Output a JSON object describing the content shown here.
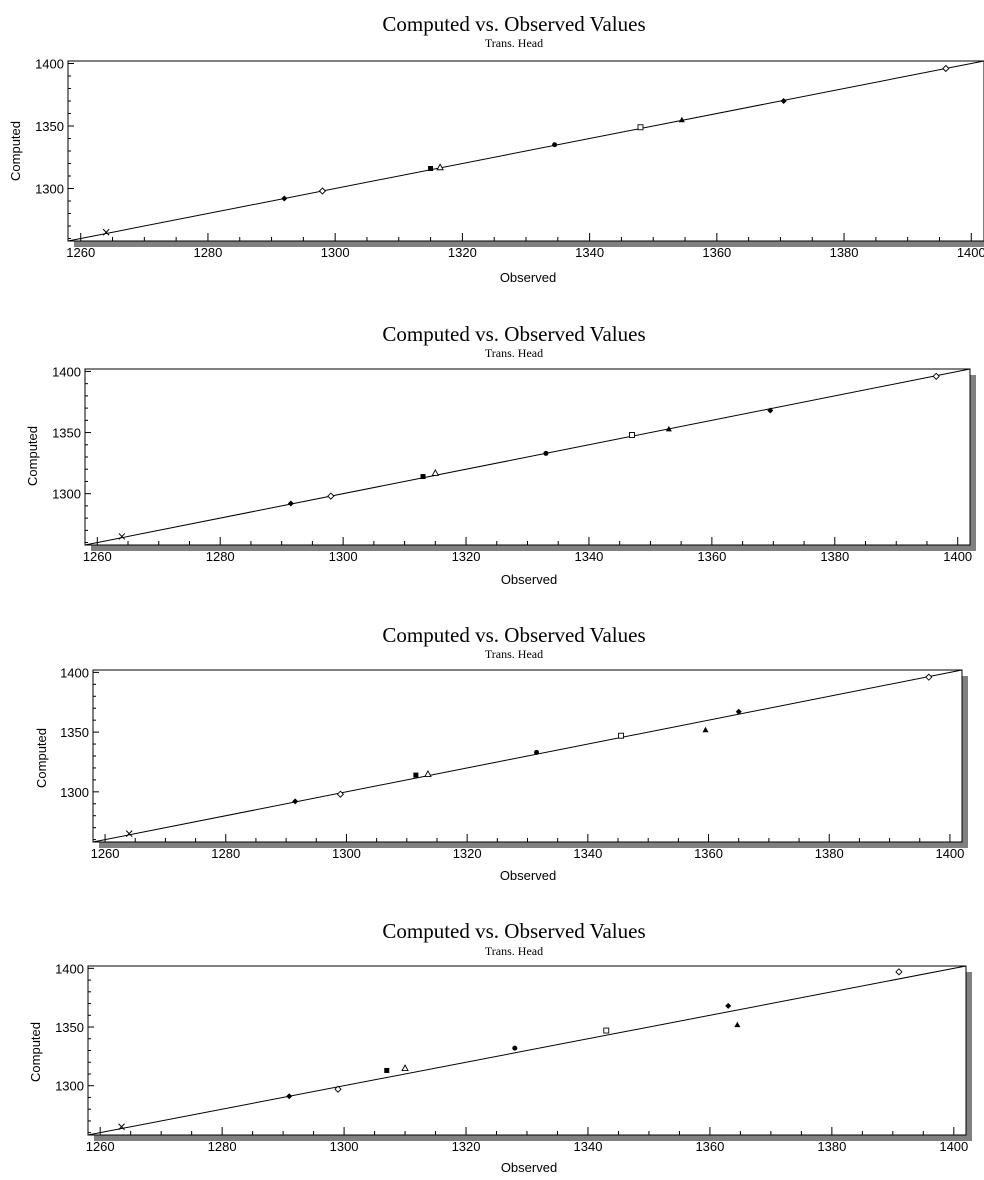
{
  "chart_data": [
    {
      "type": "scatter",
      "title": "Computed vs. Observed Values",
      "subtitle": "Trans. Head",
      "xlabel": "Observed",
      "ylabel": "Computed",
      "xlim": [
        1258,
        1402
      ],
      "ylim": [
        1258,
        1402
      ],
      "xticks": [
        1260,
        1280,
        1300,
        1320,
        1340,
        1360,
        1380,
        1400
      ],
      "yticks": [
        1300,
        1350,
        1400
      ],
      "grid": false,
      "reference_line": [
        [
          1258,
          1258
        ],
        [
          1402,
          1402
        ]
      ],
      "points": [
        {
          "marker": "x",
          "x": 1264,
          "y": 1265
        },
        {
          "marker": "diamond",
          "x": 1292,
          "y": 1292
        },
        {
          "marker": "diamond-open",
          "x": 1298,
          "y": 1298
        },
        {
          "marker": "square",
          "x": 1315,
          "y": 1316
        },
        {
          "marker": "triangle-open",
          "x": 1316.5,
          "y": 1317
        },
        {
          "marker": "circle",
          "x": 1334.5,
          "y": 1335
        },
        {
          "marker": "square-open",
          "x": 1348,
          "y": 1349
        },
        {
          "marker": "triangle",
          "x": 1354.5,
          "y": 1355
        },
        {
          "marker": "diamond",
          "x": 1370.5,
          "y": 1370
        },
        {
          "marker": "diamond-open",
          "x": 1396,
          "y": 1396
        }
      ]
    },
    {
      "type": "scatter",
      "title": "Computed vs. Observed Values",
      "subtitle": "Trans. Head",
      "xlabel": "Observed",
      "ylabel": "Computed",
      "xlim": [
        1258,
        1402
      ],
      "ylim": [
        1258,
        1402
      ],
      "xticks": [
        1260,
        1280,
        1300,
        1320,
        1340,
        1360,
        1380,
        1400
      ],
      "yticks": [
        1300,
        1350,
        1400
      ],
      "grid": false,
      "reference_line": [
        [
          1258,
          1258
        ],
        [
          1402,
          1402
        ]
      ],
      "points": [
        {
          "marker": "x",
          "x": 1264,
          "y": 1265
        },
        {
          "marker": "diamond",
          "x": 1291.5,
          "y": 1292
        },
        {
          "marker": "diamond-open",
          "x": 1298,
          "y": 1298
        },
        {
          "marker": "square",
          "x": 1313,
          "y": 1314
        },
        {
          "marker": "triangle-open",
          "x": 1315,
          "y": 1317
        },
        {
          "marker": "circle",
          "x": 1333,
          "y": 1333
        },
        {
          "marker": "square-open",
          "x": 1347,
          "y": 1348
        },
        {
          "marker": "triangle",
          "x": 1353,
          "y": 1353
        },
        {
          "marker": "diamond",
          "x": 1369.5,
          "y": 1368
        },
        {
          "marker": "diamond-open",
          "x": 1396.5,
          "y": 1396
        }
      ]
    },
    {
      "type": "scatter",
      "title": "Computed vs. Observed Values",
      "subtitle": "Trans. Head",
      "xlabel": "Observed",
      "ylabel": "Computed",
      "xlim": [
        1258,
        1402
      ],
      "ylim": [
        1258,
        1402
      ],
      "xticks": [
        1260,
        1280,
        1300,
        1320,
        1340,
        1360,
        1380,
        1400
      ],
      "yticks": [
        1300,
        1350,
        1400
      ],
      "grid": false,
      "reference_line": [
        [
          1258,
          1258
        ],
        [
          1402,
          1402
        ]
      ],
      "points": [
        {
          "marker": "x",
          "x": 1264,
          "y": 1265
        },
        {
          "marker": "diamond",
          "x": 1291.5,
          "y": 1292
        },
        {
          "marker": "diamond-open",
          "x": 1299,
          "y": 1298
        },
        {
          "marker": "square",
          "x": 1311.5,
          "y": 1314
        },
        {
          "marker": "triangle-open",
          "x": 1313.5,
          "y": 1315
        },
        {
          "marker": "circle",
          "x": 1331.5,
          "y": 1333
        },
        {
          "marker": "square-open",
          "x": 1345.5,
          "y": 1347
        },
        {
          "marker": "triangle",
          "x": 1359.5,
          "y": 1352
        },
        {
          "marker": "diamond",
          "x": 1365,
          "y": 1367
        },
        {
          "marker": "diamond-open",
          "x": 1396.5,
          "y": 1396
        }
      ]
    },
    {
      "type": "scatter",
      "title": "Computed vs. Observed Values",
      "subtitle": "Trans. Head",
      "xlabel": "Observed",
      "ylabel": "Computed",
      "xlim": [
        1258,
        1402
      ],
      "ylim": [
        1258,
        1402
      ],
      "xticks": [
        1260,
        1280,
        1300,
        1320,
        1340,
        1360,
        1380,
        1400
      ],
      "yticks": [
        1300,
        1350,
        1400
      ],
      "grid": false,
      "reference_line": [
        [
          1258,
          1258
        ],
        [
          1402,
          1402
        ]
      ],
      "points": [
        {
          "marker": "x",
          "x": 1263.5,
          "y": 1265
        },
        {
          "marker": "diamond",
          "x": 1291,
          "y": 1291
        },
        {
          "marker": "diamond-open",
          "x": 1299,
          "y": 1297
        },
        {
          "marker": "square",
          "x": 1307,
          "y": 1313
        },
        {
          "marker": "triangle-open",
          "x": 1310,
          "y": 1315
        },
        {
          "marker": "circle",
          "x": 1328,
          "y": 1332
        },
        {
          "marker": "square-open",
          "x": 1343,
          "y": 1347
        },
        {
          "marker": "diamond",
          "x": 1363,
          "y": 1368
        },
        {
          "marker": "triangle",
          "x": 1364.5,
          "y": 1352
        },
        {
          "marker": "diamond-open",
          "x": 1391,
          "y": 1397
        }
      ]
    }
  ]
}
